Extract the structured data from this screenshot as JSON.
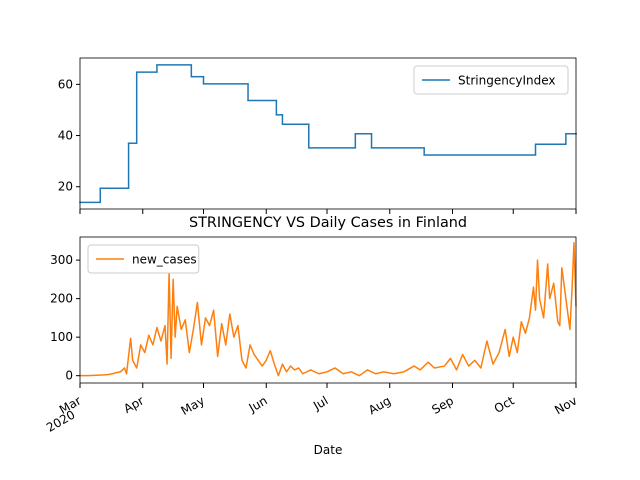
{
  "chart_data": [
    {
      "type": "line",
      "drawstyle": "steps-post",
      "x": [
        0,
        10,
        24,
        28,
        38,
        55,
        61,
        83,
        97,
        100,
        113,
        136,
        144,
        170,
        225,
        240,
        245
      ],
      "series": [
        {
          "name": "StringencyIndex",
          "color": "#1f77b4",
          "values": [
            13.9,
            19.4,
            37,
            64.8,
            67.6,
            63,
            60.2,
            53.7,
            48.1,
            44.4,
            35.2,
            40.7,
            35.2,
            32.4,
            36.6,
            40.7,
            40.7
          ]
        }
      ],
      "xlim": [
        0,
        245
      ],
      "ylim": [
        11.3,
        70.3
      ],
      "yticks": [
        20,
        40,
        60
      ],
      "legend": "upper right"
    },
    {
      "type": "line",
      "title": "STRINGENCY VS Daily Cases in Finland",
      "xlabel": "Date",
      "x": [
        0,
        4,
        8,
        12,
        14,
        16,
        18,
        20,
        22,
        23,
        25,
        26,
        28,
        30,
        32,
        34,
        36,
        38,
        40,
        42,
        43,
        44,
        45,
        46,
        47,
        48,
        50,
        52,
        54,
        56,
        58,
        60,
        62,
        64,
        66,
        68,
        70,
        72,
        74,
        76,
        78,
        80,
        82,
        84,
        86,
        88,
        90,
        92,
        94,
        96,
        98,
        100,
        102,
        104,
        106,
        108,
        110,
        114,
        118,
        122,
        126,
        130,
        134,
        138,
        142,
        146,
        150,
        155,
        160,
        165,
        168,
        172,
        175,
        180,
        183,
        186,
        189,
        192,
        195,
        198,
        201,
        204,
        207,
        210,
        212,
        214,
        216,
        218,
        220,
        222,
        224,
        225,
        226,
        227,
        229,
        231,
        232,
        234,
        236,
        237,
        238,
        240,
        242,
        243,
        244,
        245
      ],
      "series": [
        {
          "name": "new_cases",
          "color": "#ff7f0e",
          "values": [
            0,
            0,
            1,
            2,
            3,
            5,
            8,
            10,
            20,
            5,
            97,
            40,
            20,
            80,
            60,
            105,
            80,
            125,
            90,
            130,
            30,
            267,
            45,
            250,
            100,
            180,
            120,
            145,
            60,
            120,
            190,
            80,
            150,
            130,
            170,
            50,
            135,
            80,
            160,
            100,
            130,
            40,
            20,
            80,
            55,
            40,
            25,
            40,
            65,
            30,
            0,
            30,
            10,
            25,
            15,
            20,
            5,
            15,
            5,
            10,
            20,
            5,
            10,
            0,
            15,
            5,
            10,
            5,
            10,
            25,
            15,
            35,
            20,
            25,
            45,
            15,
            55,
            25,
            40,
            20,
            90,
            30,
            60,
            120,
            50,
            100,
            60,
            140,
            110,
            150,
            230,
            170,
            300,
            200,
            150,
            290,
            200,
            240,
            140,
            130,
            280,
            200,
            120,
            220,
            345,
            180
          ]
        }
      ],
      "xlim": [
        0,
        245
      ],
      "ylim": [
        -19,
        360
      ],
      "yticks": [
        0,
        100,
        200,
        300
      ],
      "xticks": [
        {
          "value": 0,
          "label": "Mar"
        },
        {
          "value": 31,
          "label": "Apr"
        },
        {
          "value": 61,
          "label": "May"
        },
        {
          "value": 92,
          "label": "Jun"
        },
        {
          "value": 122,
          "label": "Jul"
        },
        {
          "value": 153,
          "label": "Aug"
        },
        {
          "value": 184,
          "label": "Sep"
        },
        {
          "value": 214,
          "label": "Oct"
        },
        {
          "value": 245,
          "label": "Nov"
        }
      ],
      "xtick_year": "2020",
      "legend": "upper left"
    }
  ]
}
